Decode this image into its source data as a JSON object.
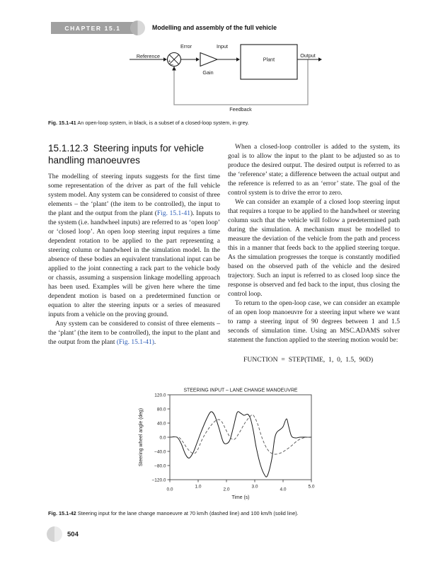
{
  "header": {
    "chapter_label": "CHAPTER 15.1",
    "title": "Modelling and assembly of the full vehicle"
  },
  "figure_41": {
    "label": "Fig. 15.1-41",
    "caption": "An open-loop system, in black, is a subset of a closed-loop system, in grey.",
    "diagram_labels": {
      "reference": "Reference",
      "error": "Error",
      "input": "Input",
      "gain": "Gain",
      "plant": "Plant",
      "output": "Output",
      "feedback": "Feedback",
      "plus": "+",
      "minus": "−"
    }
  },
  "section": {
    "number": "15.1.12.3",
    "title": "Steering inputs for vehicle handling manoeuvres"
  },
  "left_column": {
    "paragraphs": [
      {
        "indent": false,
        "segments": [
          {
            "text": "The modelling of steering inputs suggests for the first time some representation of the driver as part of the full vehicle system model. Any system can be considered to consist of three elements – the ‘plant’ (the item to be controlled), the input to the plant and the output from the plant ("
          },
          {
            "text": "Fig. 15.1-41",
            "style": "link"
          },
          {
            "text": "). Inputs to the system (i.e. handwheel inputs) are referred to as ‘open loop’ or ‘closed loop’. An open loop steering input requires a time dependent rotation to be applied to the part representing a steering column or handwheel in the simulation model. In the absence of these bodies an equivalent translational input can be applied to the joint connecting a rack part to the vehicle body or chassis, assuming a suspension linkage modelling approach has been used. Examples will be given here where the time dependent motion is based on a predetermined function or equation to alter the steering inputs or a series of measured inputs from a vehicle on the proving ground."
          }
        ]
      },
      {
        "indent": true,
        "segments": [
          {
            "text": "Any system can be considered to consist of three elements – the ‘plant’ (the item to be controlled), the input to the plant and the output from the plant "
          },
          {
            "text": "(Fig. 15.1-41)",
            "style": "link"
          },
          {
            "text": "."
          }
        ]
      }
    ]
  },
  "right_column": {
    "paragraphs": [
      {
        "indent": true,
        "segments": [
          {
            "text": "When a closed-loop controller is added to the system, its goal is to allow the input to the plant to be adjusted so as to produce the desired output. The desired output is referred to as the ‘reference’ state; a difference between the actual output and the reference is referred to as an ‘error’ state. The goal of the control system is to drive the error to zero."
          }
        ]
      },
      {
        "indent": true,
        "segments": [
          {
            "text": "We can consider an example of a closed loop steering input that requires a torque to be applied to the handwheel or steering column such that the vehicle will follow a predetermined path during the simulation. A mechanism must be modelled to measure the deviation of the vehicle from the path and process this in a manner that feeds back to the applied steering torque. As the simulation progresses the torque is constantly modified based on the observed path of the vehicle and the desired trajectory. Such an input is referred to as closed loop since the response is observed and fed back to the input, thus closing the control loop."
          }
        ]
      },
      {
        "indent": true,
        "segments": [
          {
            "text": "To return to the open-loop case, we can consider an example of an open loop manoeuvre for a steering input where we want to ramp a steering input of 90 degrees between 1 and 1.5 seconds of simulation time. Using an MSC.ADAMS solver statement the function applied to the steering motion would be:"
          }
        ]
      }
    ],
    "formula": "FUNCTION = STEP(TIME, 1, 0, 1.5, 90D)"
  },
  "chart_data": {
    "type": "line",
    "title": "STEERING INPUT – LANE CHANGE MANOEUVRE",
    "xlabel": "Time (s)",
    "ylabel": "Steering wheel angle (deg)",
    "xlim": [
      0,
      5
    ],
    "ylim": [
      -120,
      120
    ],
    "grid": false,
    "legend": "none (line styles described in caption)",
    "xticks": [
      0,
      1,
      2,
      3,
      4,
      5
    ],
    "xtick_labels": [
      "0.0",
      "1.0",
      "2.0",
      "3.0",
      "4.0",
      "5.0"
    ],
    "yticks": [
      120,
      80,
      40,
      0,
      -40,
      -80,
      -120
    ],
    "ytick_labels": [
      "120.0",
      "80.0",
      "40.0",
      "0.0",
      "−40.0",
      "−80.0",
      "−120.0"
    ],
    "series": [
      {
        "name": "100 km/h (solid line)",
        "style": "solid",
        "points": [
          [
            0,
            0
          ],
          [
            0.25,
            0
          ],
          [
            0.4,
            -18
          ],
          [
            0.55,
            -48
          ],
          [
            0.68,
            -59
          ],
          [
            0.82,
            -44
          ],
          [
            0.95,
            -18
          ],
          [
            1.1,
            14
          ],
          [
            1.3,
            52
          ],
          [
            1.45,
            72
          ],
          [
            1.58,
            62
          ],
          [
            1.72,
            30
          ],
          [
            1.88,
            -12
          ],
          [
            2.0,
            -18
          ],
          [
            2.12,
            -8
          ],
          [
            2.25,
            30
          ],
          [
            2.38,
            70
          ],
          [
            2.5,
            68
          ],
          [
            2.62,
            62
          ],
          [
            2.75,
            65
          ],
          [
            2.85,
            52
          ],
          [
            2.95,
            18
          ],
          [
            3.05,
            -28
          ],
          [
            3.2,
            -78
          ],
          [
            3.35,
            -107
          ],
          [
            3.45,
            -108
          ],
          [
            3.6,
            -62
          ],
          [
            3.7,
            -5
          ],
          [
            3.78,
            14
          ],
          [
            3.9,
            22
          ],
          [
            4.0,
            30
          ],
          [
            4.12,
            52
          ],
          [
            4.2,
            30
          ],
          [
            4.3,
            3
          ],
          [
            4.45,
            -2
          ],
          [
            4.6,
            0
          ],
          [
            5,
            0
          ]
        ]
      },
      {
        "name": "70 km/h (dashed line)",
        "style": "dashed",
        "points": [
          [
            0,
            0
          ],
          [
            0.3,
            0
          ],
          [
            0.45,
            -12
          ],
          [
            0.62,
            -32
          ],
          [
            0.8,
            -45
          ],
          [
            0.95,
            -40
          ],
          [
            1.15,
            -5
          ],
          [
            1.35,
            22
          ],
          [
            1.55,
            42
          ],
          [
            1.72,
            50
          ],
          [
            1.85,
            42
          ],
          [
            2.0,
            18
          ],
          [
            2.15,
            -2
          ],
          [
            2.28,
            -6
          ],
          [
            2.45,
            12
          ],
          [
            2.65,
            40
          ],
          [
            2.85,
            60
          ],
          [
            2.95,
            62
          ],
          [
            3.1,
            38
          ],
          [
            3.25,
            0
          ],
          [
            3.4,
            -28
          ],
          [
            3.55,
            -43
          ],
          [
            3.72,
            -48
          ],
          [
            3.9,
            -45
          ],
          [
            4.1,
            -36
          ],
          [
            4.3,
            -24
          ],
          [
            4.5,
            -10
          ],
          [
            4.68,
            -3
          ],
          [
            4.85,
            0
          ],
          [
            5,
            0
          ]
        ]
      }
    ]
  },
  "figure_42": {
    "label": "Fig. 15.1-42",
    "caption": "Steering input for the lane change manoeuvre at 70 km/h (dashed line) and 100 km/h (solid line)."
  },
  "footer": {
    "page_number": "504"
  },
  "colors": {
    "chapter_tab_grey": "#a0a0a0",
    "link_blue": "#2b5bb5",
    "feedback_loop_grey": "#9a9a9a",
    "solid_line": "#1a1a1a",
    "dashed_line": "#555555"
  }
}
